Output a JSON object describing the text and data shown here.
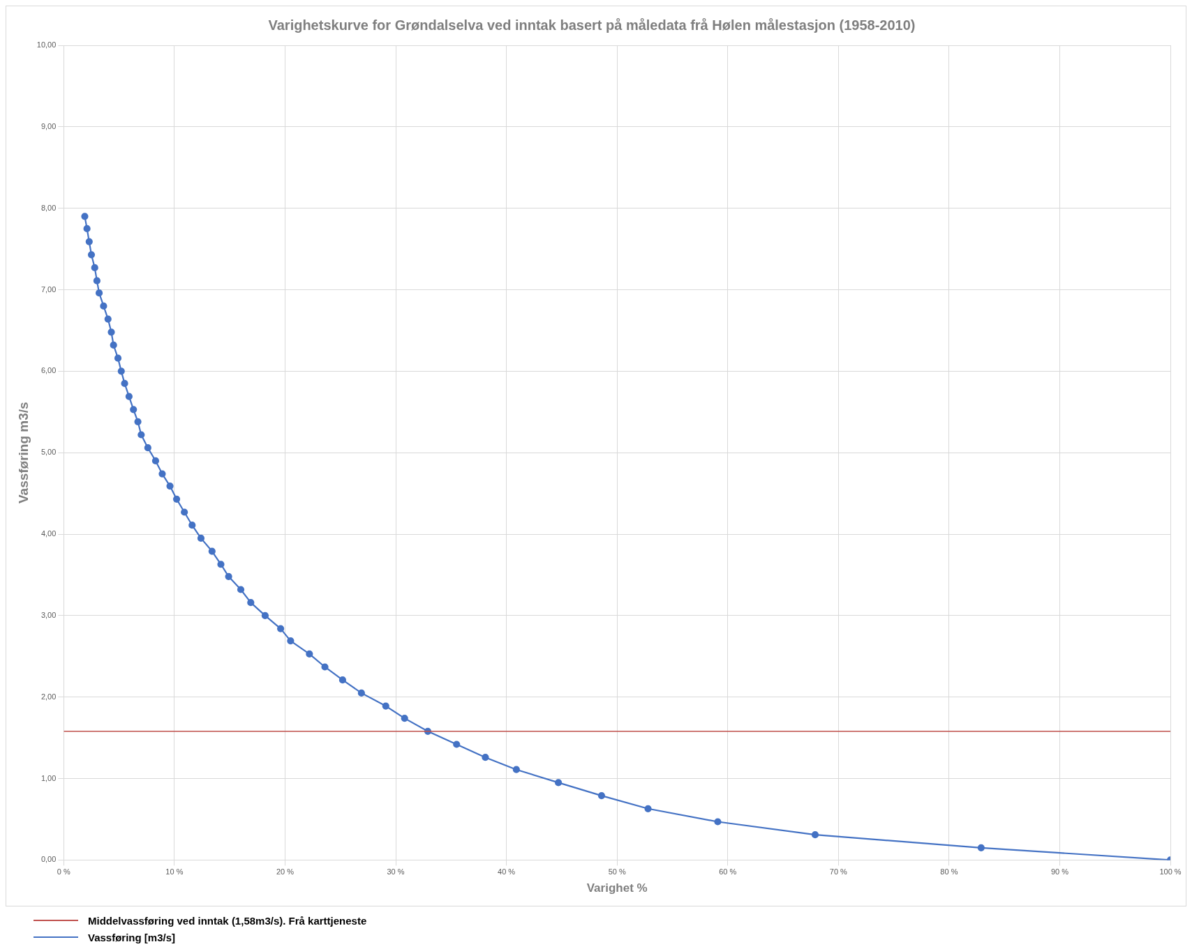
{
  "chart_data": {
    "type": "line",
    "title": "Varighetskurve for Grøndalselva ved inntak basert på måledata frå Hølen målestasjon (1958-2010)",
    "xlabel": "Varighet %",
    "ylabel": "Vassføring m3/s",
    "xlim": [
      0,
      100
    ],
    "ylim": [
      0,
      10
    ],
    "xticks": [
      {
        "value": 0,
        "label": "0 %"
      },
      {
        "value": 10,
        "label": "10 %"
      },
      {
        "value": 20,
        "label": "20 %"
      },
      {
        "value": 30,
        "label": "30 %"
      },
      {
        "value": 40,
        "label": "40 %"
      },
      {
        "value": 50,
        "label": "50 %"
      },
      {
        "value": 60,
        "label": "60 %"
      },
      {
        "value": 70,
        "label": "70 %"
      },
      {
        "value": 80,
        "label": "80 %"
      },
      {
        "value": 90,
        "label": "90 %"
      },
      {
        "value": 100,
        "label": "100 %"
      }
    ],
    "yticks": [
      {
        "value": 0,
        "label": "0,00"
      },
      {
        "value": 1,
        "label": "1,00"
      },
      {
        "value": 2,
        "label": "2,00"
      },
      {
        "value": 3,
        "label": "3,00"
      },
      {
        "value": 4,
        "label": "4,00"
      },
      {
        "value": 5,
        "label": "5,00"
      },
      {
        "value": 6,
        "label": "6,00"
      },
      {
        "value": 7,
        "label": "7,00"
      },
      {
        "value": 8,
        "label": "8,00"
      },
      {
        "value": 9,
        "label": "9,00"
      },
      {
        "value": 10,
        "label": "10,00"
      }
    ],
    "grid": true,
    "legend": "bottom left",
    "marker": "circle",
    "line_style": "solid",
    "ref_lines": [
      {
        "axis": "y",
        "value": 1.58,
        "label": "Middelvassføring ved inntak (1,58m3/s). Frå karttjeneste",
        "color": "#c0504d"
      }
    ],
    "series": [
      {
        "name": "Vassføring [m3/s]",
        "color": "#4472c4",
        "x": [
          1.9,
          2.1,
          2.3,
          2.5,
          2.8,
          3.0,
          3.2,
          3.6,
          4.0,
          4.3,
          4.5,
          4.9,
          5.2,
          5.5,
          5.9,
          6.3,
          6.7,
          7.0,
          7.6,
          8.3,
          8.9,
          9.6,
          10.2,
          10.9,
          11.6,
          12.4,
          13.4,
          14.2,
          14.9,
          16.0,
          16.9,
          18.2,
          19.6,
          20.5,
          22.2,
          23.6,
          25.2,
          26.9,
          29.1,
          30.8,
          32.9,
          35.5,
          38.1,
          40.9,
          44.7,
          48.6,
          52.8,
          59.1,
          67.9,
          82.9,
          100
        ],
        "values": [
          7.9,
          7.75,
          7.59,
          7.43,
          7.27,
          7.11,
          6.96,
          6.8,
          6.64,
          6.48,
          6.32,
          6.16,
          6.0,
          5.85,
          5.69,
          5.53,
          5.38,
          5.22,
          5.06,
          4.9,
          4.74,
          4.59,
          4.43,
          4.27,
          4.11,
          3.95,
          3.79,
          3.63,
          3.48,
          3.32,
          3.16,
          3.0,
          2.84,
          2.69,
          2.53,
          2.37,
          2.21,
          2.05,
          1.89,
          1.74,
          1.58,
          1.42,
          1.26,
          1.11,
          0.95,
          0.79,
          0.63,
          0.47,
          0.31,
          0.15,
          0
        ]
      }
    ]
  }
}
